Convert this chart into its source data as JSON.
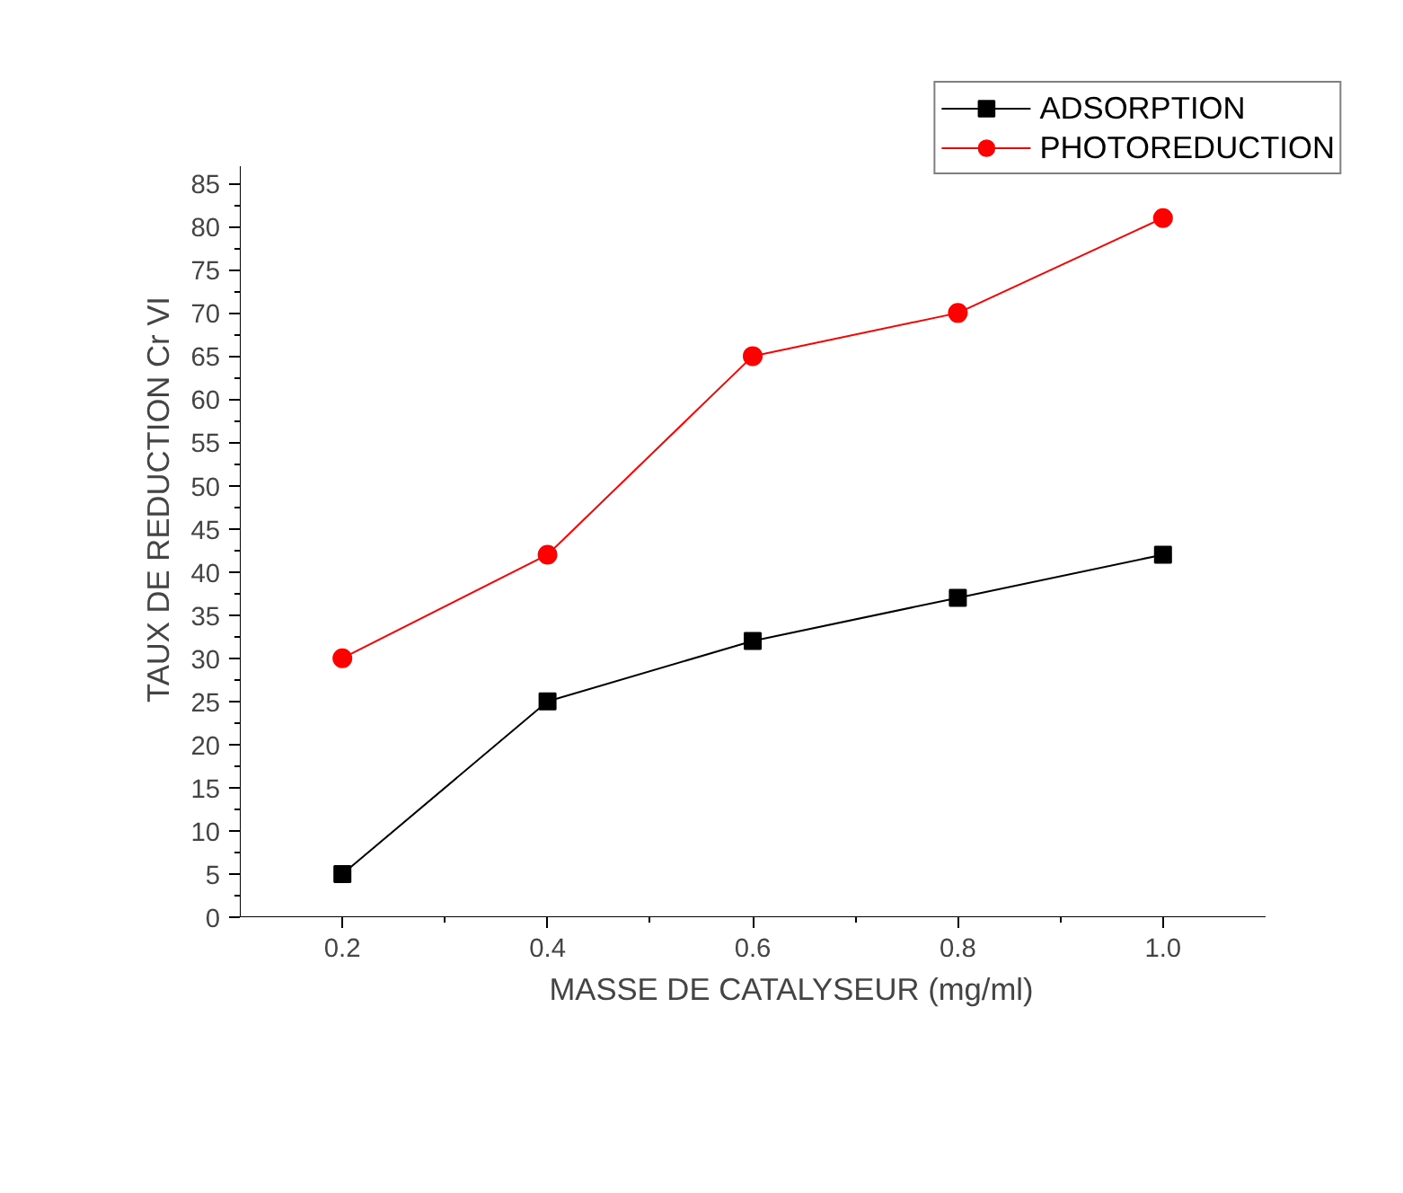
{
  "chart_data": {
    "type": "line",
    "xlabel": "MASSE DE CATALYSEUR (mg/ml)",
    "ylabel": "TAUX DE REDUCTION Cr VI",
    "x": [
      0.2,
      0.4,
      0.6,
      0.8,
      1.0
    ],
    "series": [
      {
        "name": "ADSORPTION",
        "color": "#000000",
        "marker": "square",
        "values": [
          5,
          25,
          32,
          37,
          42
        ]
      },
      {
        "name": "PHOTOREDUCTION",
        "color": "#ff0000",
        "marker": "circle",
        "values": [
          30,
          42,
          65,
          70,
          81
        ]
      }
    ],
    "xlim": [
      0.1,
      1.1
    ],
    "ylim": [
      0,
      87
    ],
    "xticks": [
      {
        "value": 0.2,
        "label": "0.2"
      },
      {
        "value": 0.4,
        "label": "0.4"
      },
      {
        "value": 0.6,
        "label": "0.6"
      },
      {
        "value": 0.8,
        "label": "0.8"
      },
      {
        "value": 1.0,
        "label": "1.0"
      }
    ],
    "yticks": [
      0,
      5,
      10,
      15,
      20,
      25,
      30,
      35,
      40,
      45,
      50,
      55,
      60,
      65,
      70,
      75,
      80,
      85
    ],
    "grid": false,
    "legend": "top right",
    "line_style": "solid"
  }
}
